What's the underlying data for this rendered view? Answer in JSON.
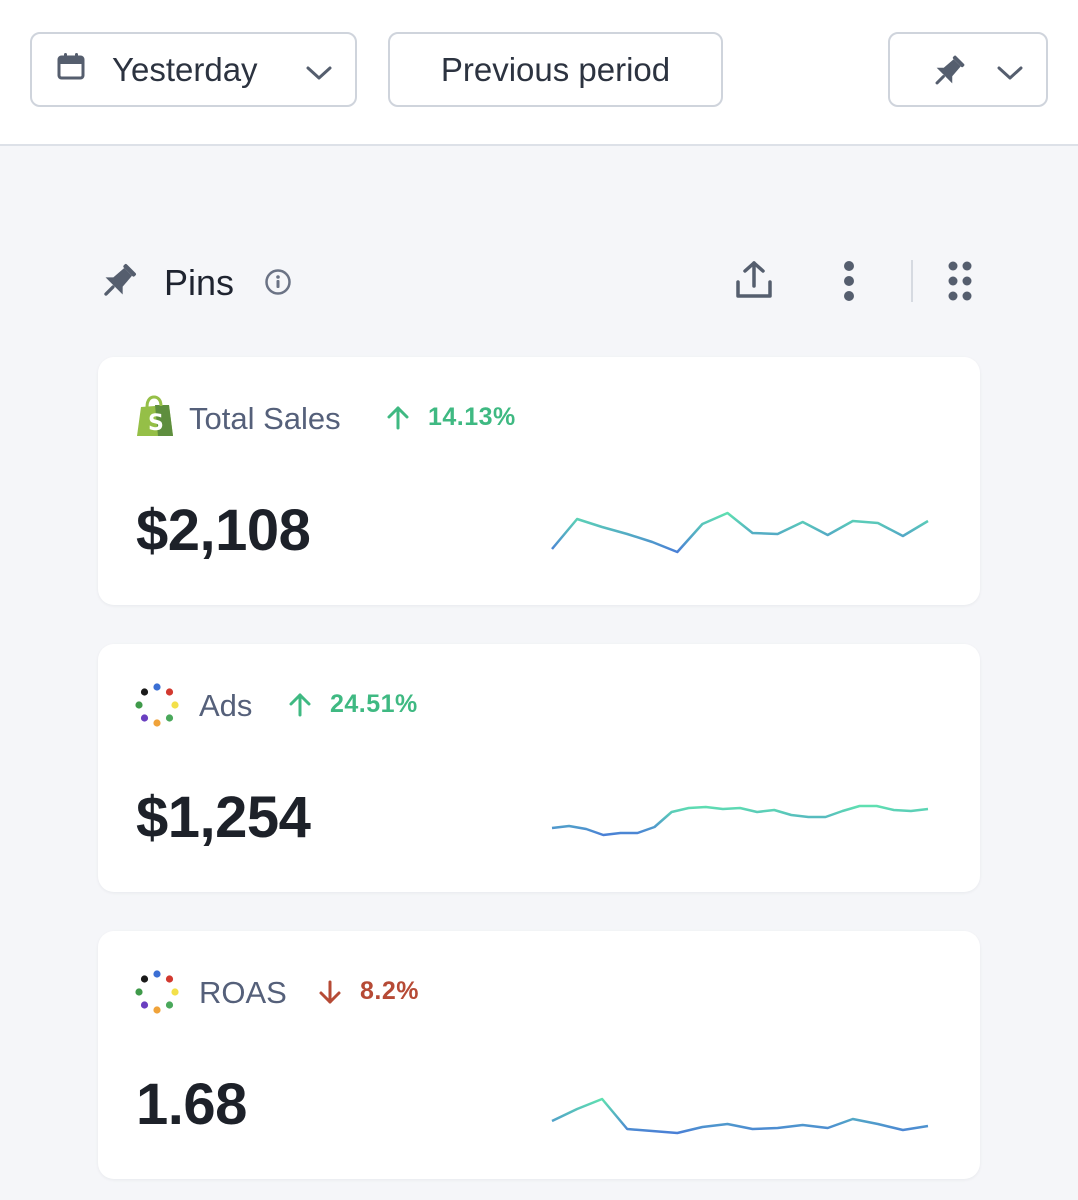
{
  "toolbar": {
    "date_range_label": "Yesterday",
    "compare_label": "Previous period"
  },
  "section": {
    "title": "Pins"
  },
  "colors": {
    "positive": "#3fb982",
    "negative": "#b64a35",
    "spark_start": "#4a7fd6",
    "spark_end": "#5fe0b0"
  },
  "cards": [
    {
      "name": "Total Sales",
      "icon": "shopify-icon",
      "delta": "14.13%",
      "delta_direction": "up",
      "value": "$2,108",
      "sparkline": [
        0.28,
        0.58,
        0.5,
        0.43,
        0.35,
        0.25,
        0.53,
        0.64,
        0.44,
        0.43,
        0.55,
        0.42,
        0.56,
        0.54,
        0.41,
        0.56
      ]
    },
    {
      "name": "Ads",
      "icon": "ads-dots-icon",
      "delta": "24.51%",
      "delta_direction": "up",
      "value": "$1,254",
      "sparkline": [
        0.36,
        0.38,
        0.35,
        0.29,
        0.31,
        0.31,
        0.37,
        0.52,
        0.56,
        0.57,
        0.55,
        0.56,
        0.52,
        0.54,
        0.49,
        0.47,
        0.47,
        0.53,
        0.58,
        0.58,
        0.54,
        0.53,
        0.55
      ]
    },
    {
      "name": "ROAS",
      "icon": "ads-dots-icon",
      "delta": "8.2%",
      "delta_direction": "down",
      "value": "1.68",
      "sparkline": [
        0.3,
        0.42,
        0.52,
        0.22,
        0.2,
        0.18,
        0.24,
        0.27,
        0.22,
        0.23,
        0.26,
        0.23,
        0.32,
        0.27,
        0.21,
        0.25
      ]
    }
  ]
}
